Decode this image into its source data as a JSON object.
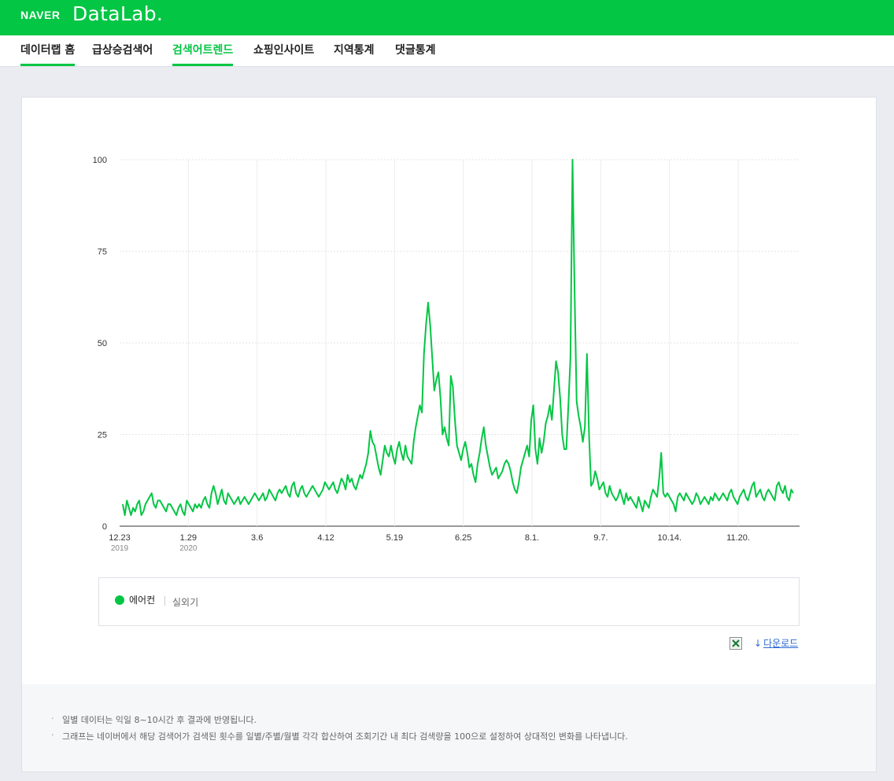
{
  "header": {
    "naver_logo": "NAVER",
    "datalab_logo": "DataLab."
  },
  "nav": {
    "tabs": [
      {
        "label": "데이터랩 홈"
      },
      {
        "label": "급상승검색어"
      },
      {
        "label": "검색어트렌드"
      },
      {
        "label": "쇼핑인사이트"
      },
      {
        "label": "지역통계"
      },
      {
        "label": "댓글통계"
      }
    ],
    "active_index": 2
  },
  "legend": {
    "series_name": "에어컨",
    "series_sub": "실외기",
    "color": "#03c644"
  },
  "actions": {
    "download_label": "다운로드"
  },
  "notes": [
    "일별 데이터는 익일 8~10시간 후 결과에 반영됩니다.",
    "그래프는 네이버에서 해당 검색어가 검색된 횟수를 일별/주별/월별 각각 합산하여 조회기간 내 최다 검색량을 100으로 설정하여 상대적인 변화를 나타냅니다."
  ],
  "chart_data": {
    "type": "line",
    "x_start": "2019-12-23",
    "x_end": "2020-12-23",
    "ylim": [
      0,
      100
    ],
    "y_ticks": [
      "0",
      "25",
      "50",
      "75",
      "100"
    ],
    "x_ticks": [
      {
        "label": "12.23",
        "sub": "2019",
        "date": "2019-12-23"
      },
      {
        "label": "1.29",
        "sub": "2020",
        "date": "2020-01-29"
      },
      {
        "label": "3.6",
        "sub": "",
        "date": "2020-03-06"
      },
      {
        "label": "4.12",
        "sub": "",
        "date": "2020-04-12"
      },
      {
        "label": "5.19",
        "sub": "",
        "date": "2020-05-19"
      },
      {
        "label": "6.25",
        "sub": "",
        "date": "2020-06-25"
      },
      {
        "label": "8.1.",
        "sub": "",
        "date": "2020-08-01"
      },
      {
        "label": "9.7.",
        "sub": "",
        "date": "2020-09-07"
      },
      {
        "label": "10.14.",
        "sub": "",
        "date": "2020-10-14"
      },
      {
        "label": "11.20.",
        "sub": "",
        "date": "2020-11-20"
      }
    ],
    "grid": true,
    "series": [
      {
        "name": "에어컨",
        "color": "#03c644",
        "values": [
          6,
          3,
          7,
          5,
          3,
          5,
          4,
          6,
          7,
          3,
          4,
          6,
          7,
          8,
          9,
          6,
          5,
          7,
          7,
          6,
          5,
          4,
          6,
          6,
          5,
          4,
          3,
          5,
          6,
          4,
          3,
          7,
          6,
          5,
          4,
          6,
          5,
          6,
          5,
          7,
          8,
          6,
          5,
          9,
          11,
          9,
          6,
          8,
          10,
          7,
          6,
          9,
          8,
          7,
          6,
          7,
          8,
          6,
          7,
          8,
          7,
          6,
          7,
          8,
          9,
          8,
          7,
          8,
          9,
          7,
          8,
          10,
          9,
          8,
          7,
          9,
          10,
          9,
          10,
          11,
          9,
          8,
          11,
          12,
          9,
          8,
          10,
          11,
          9,
          8,
          9,
          10,
          11,
          10,
          9,
          8,
          9,
          10,
          12,
          11,
          10,
          11,
          12,
          10,
          9,
          11,
          13,
          12,
          10,
          14,
          12,
          13,
          11,
          10,
          12,
          14,
          13,
          15,
          17,
          20,
          26,
          23,
          22,
          19,
          16,
          14,
          18,
          22,
          20,
          19,
          22,
          19,
          17,
          21,
          23,
          20,
          18,
          22,
          19,
          18,
          17,
          23,
          27,
          30,
          33,
          31,
          47,
          55,
          61,
          55,
          46,
          37,
          40,
          42,
          35,
          25,
          27,
          24,
          22,
          41,
          38,
          29,
          22,
          20,
          18,
          21,
          23,
          20,
          16,
          17,
          14,
          12,
          17,
          20,
          24,
          27,
          22,
          19,
          16,
          14,
          15,
          16,
          13,
          14,
          15,
          17,
          18,
          17,
          15,
          12,
          10,
          9,
          12,
          16,
          18,
          20,
          22,
          19,
          29,
          33,
          21,
          17,
          24,
          20,
          23,
          28,
          30,
          33,
          29,
          37,
          45,
          42,
          35,
          25,
          21,
          21,
          33,
          46,
          100,
          64,
          34,
          30,
          27,
          23,
          27,
          47,
          25,
          11,
          12,
          15,
          13,
          10,
          11,
          12,
          9,
          8,
          11,
          9,
          8,
          7,
          8,
          10,
          8,
          6,
          9,
          7,
          8,
          7,
          6,
          5,
          8,
          6,
          4,
          7,
          6,
          5,
          8,
          10,
          9,
          8,
          13,
          20,
          9,
          8,
          9,
          8,
          7,
          6,
          4,
          8,
          9,
          8,
          7,
          9,
          8,
          7,
          6,
          7,
          9,
          8,
          6,
          7,
          8,
          7,
          6,
          8,
          7,
          9,
          8,
          7,
          8,
          9,
          8,
          7,
          9,
          10,
          8,
          7,
          6,
          8,
          9,
          10,
          8,
          7,
          9,
          11,
          12,
          8,
          9,
          10,
          8,
          7,
          9,
          10,
          9,
          8,
          7,
          11,
          12,
          10,
          9,
          11,
          8,
          7,
          10,
          9
        ]
      }
    ]
  }
}
